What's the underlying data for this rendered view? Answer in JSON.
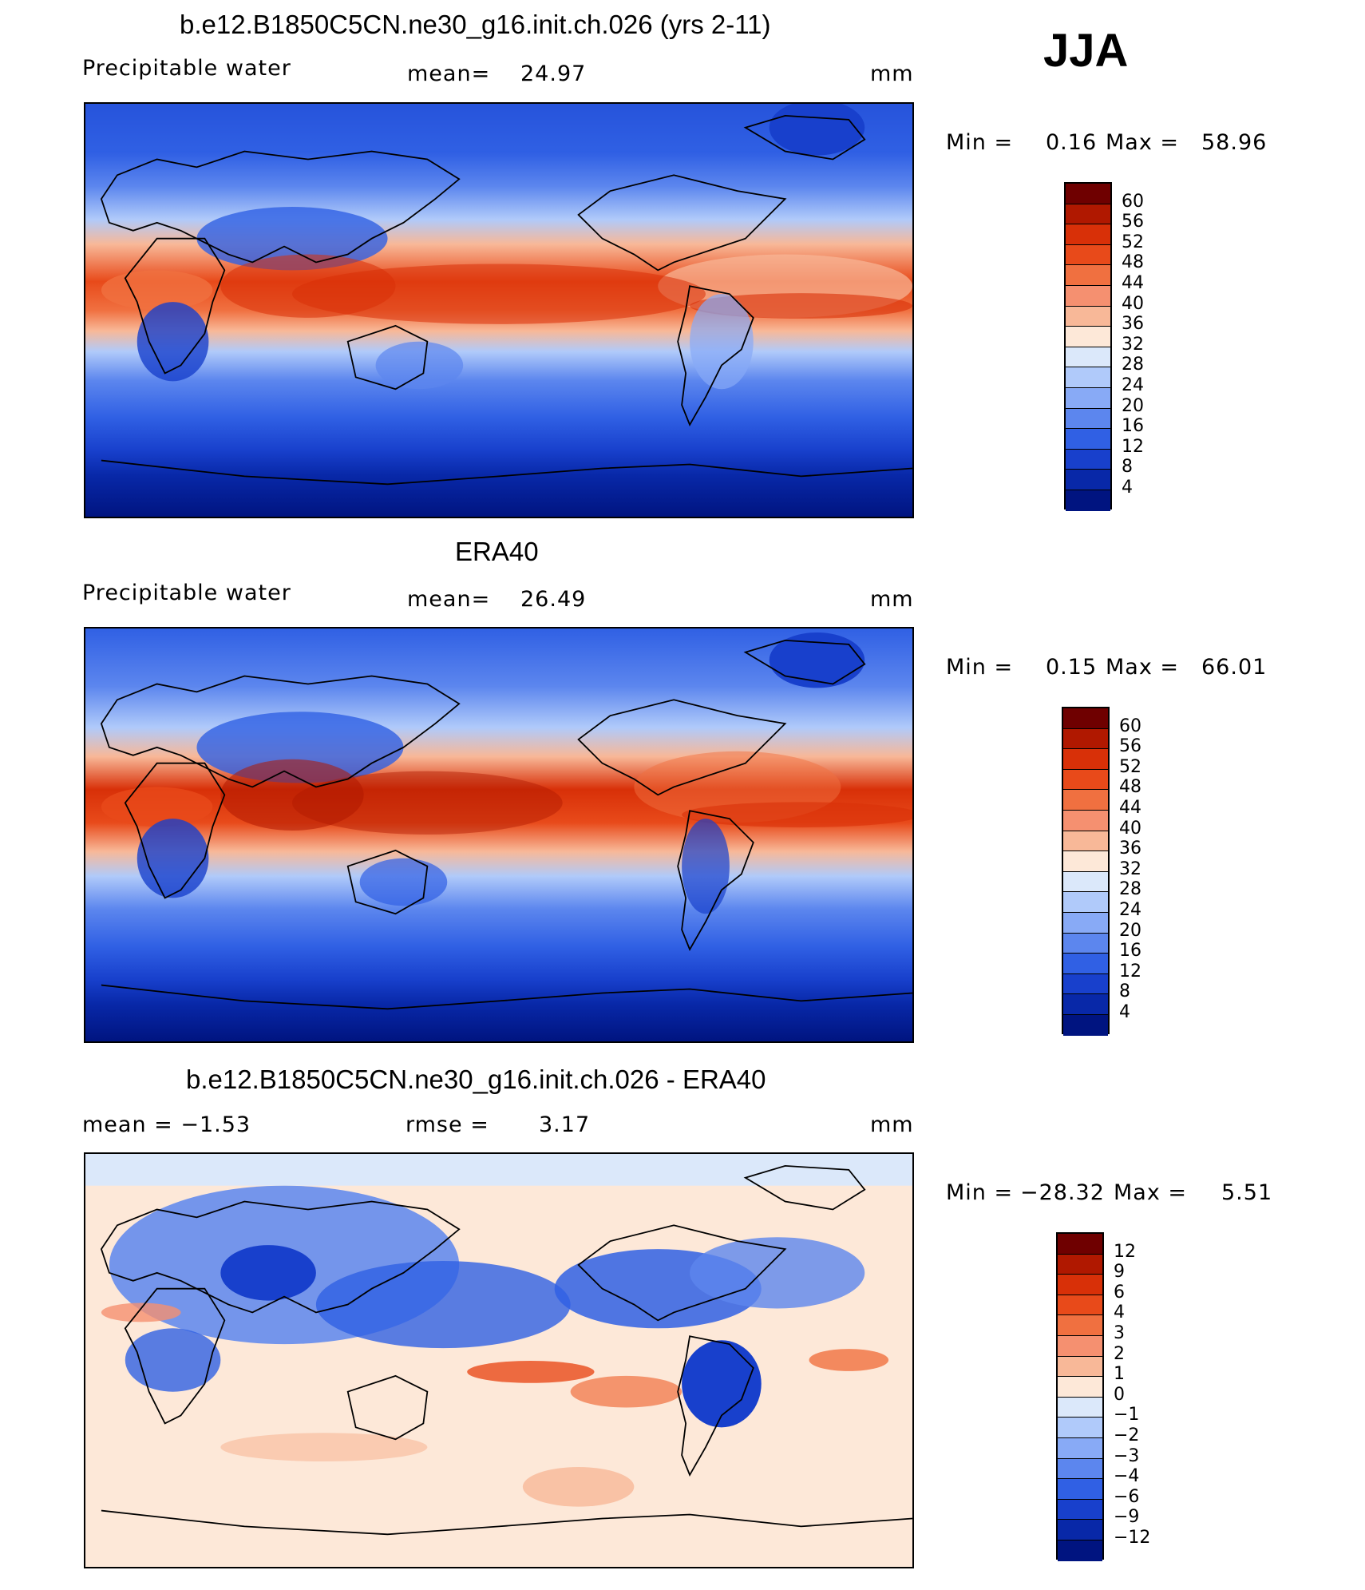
{
  "season": "JJA",
  "panels": [
    {
      "id": "model",
      "title": "b.e12.B1850C5CN.ne30_g16.init.ch.026 (yrs 2-11)",
      "left_label": "Precipitable  water",
      "stat_label": "mean=",
      "stat_value": "24.97",
      "units": "mm",
      "min_label": "Min  =",
      "min_value": "0.16",
      "max_label": "Max  =",
      "max_value": "58.96",
      "colorbar_labels": [
        "60",
        "56",
        "52",
        "48",
        "44",
        "40",
        "36",
        "32",
        "28",
        "24",
        "20",
        "16",
        "12",
        "8",
        "4"
      ]
    },
    {
      "id": "obs",
      "title": "ERA40",
      "left_label": "Precipitable  water",
      "stat_label": "mean=",
      "stat_value": "26.49",
      "units": "mm",
      "min_label": "Min  =",
      "min_value": "0.15",
      "max_label": "Max  =",
      "max_value": "66.01",
      "colorbar_labels": [
        "60",
        "56",
        "52",
        "48",
        "44",
        "40",
        "36",
        "32",
        "28",
        "24",
        "20",
        "16",
        "12",
        "8",
        "4"
      ]
    },
    {
      "id": "diff",
      "title": "b.e12.B1850C5CN.ne30_g16.init.ch.026 - ERA40",
      "left_label": "mean  =    −1.53",
      "stat_label": "rmse  =",
      "stat_value": "3.17",
      "units": "mm",
      "min_label": "Min  =",
      "min_value": "−28.32",
      "max_label": "Max  =",
      "max_value": "5.51",
      "colorbar_labels": [
        "12",
        "9",
        "6",
        "4",
        "3",
        "2",
        "1",
        "0",
        "−1",
        "−2",
        "−3",
        "−4",
        "−6",
        "−9",
        "−12"
      ]
    }
  ],
  "colors": {
    "abs_scale": [
      "#6f0000",
      "#b01800",
      "#d83008",
      "#e84a1a",
      "#f07040",
      "#f59070",
      "#f8b898",
      "#fde8d8",
      "#dbe8fa",
      "#b0cafa",
      "#88aaf6",
      "#5c86ee",
      "#3060e4",
      "#1840cc",
      "#0828a8",
      "#001480"
    ],
    "diff_scale": [
      "#6f0000",
      "#b01800",
      "#d83008",
      "#e84a1a",
      "#f07040",
      "#f59070",
      "#f8b898",
      "#fde8d8",
      "#dbe8fa",
      "#b0cafa",
      "#88aaf6",
      "#5c86ee",
      "#3060e4",
      "#1840cc",
      "#0828a8",
      "#001480"
    ]
  }
}
